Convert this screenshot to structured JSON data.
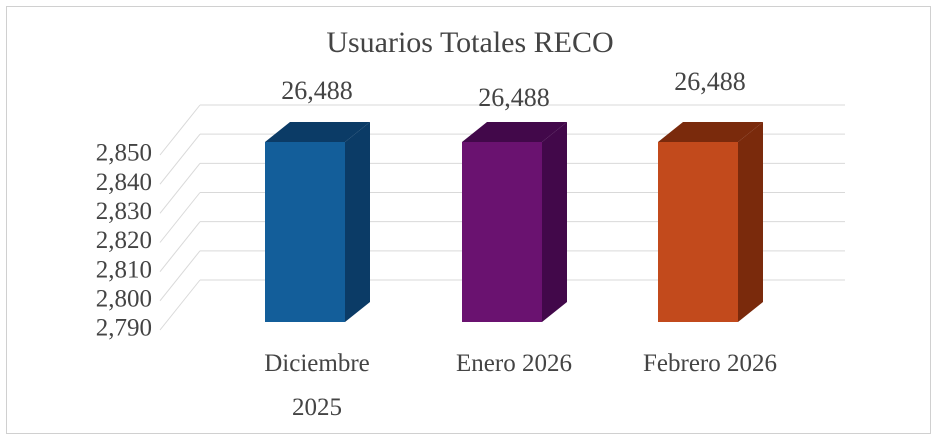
{
  "chart_data": {
    "type": "bar3d",
    "title": "Usuarios Totales RECO",
    "categories": [
      "Diciembre 2025",
      "Enero 2026",
      "Febrero 2026"
    ],
    "values": [
      26488,
      26488,
      26488
    ],
    "value_labels": [
      "26,488",
      "26,488",
      "26,488"
    ],
    "colors": [
      "#135e9a",
      "#6a1270",
      "#c24a1c"
    ],
    "side_colors": [
      "#0b3b66",
      "#42084a",
      "#7a2a0c"
    ],
    "ylim": [
      2790,
      2850
    ],
    "yticks": [
      {
        "value": 2790,
        "label": "2,790"
      },
      {
        "value": 2800,
        "label": "2,800"
      },
      {
        "value": 2810,
        "label": "2,810"
      },
      {
        "value": 2820,
        "label": "2,820"
      },
      {
        "value": 2830,
        "label": "2,830"
      },
      {
        "value": 2840,
        "label": "2,840"
      },
      {
        "value": 2850,
        "label": "2,850"
      }
    ],
    "grid": true
  }
}
